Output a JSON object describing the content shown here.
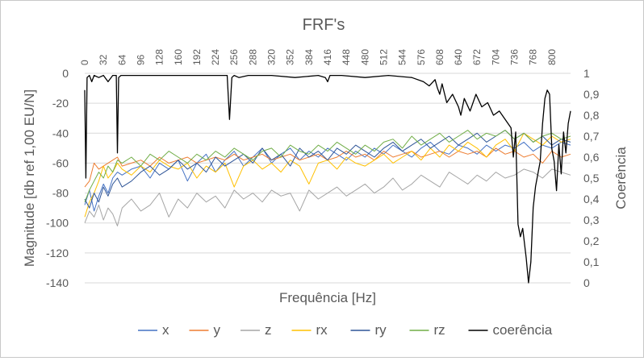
{
  "chart_data": {
    "type": "line",
    "title": "FRF's",
    "xlabel": "Frequência [Hz]",
    "ylabel": "Magnitude [db ref 1,00 EU/N]",
    "y2label": "Coerência",
    "xlim": [
      0,
      832
    ],
    "ylim": [
      -140,
      0
    ],
    "y2lim": [
      0,
      1
    ],
    "x_ticks": [
      "0",
      "32",
      "64",
      "96",
      "128",
      "160",
      "192",
      "224",
      "256",
      "288",
      "320",
      "352",
      "384",
      "416",
      "448",
      "480",
      "512",
      "544",
      "576",
      "608",
      "640",
      "672",
      "704",
      "736",
      "768",
      "800"
    ],
    "y_ticks": [
      "0",
      "-20",
      "-40",
      "-60",
      "-80",
      "-100",
      "-120",
      "-140"
    ],
    "y2_ticks": [
      "1",
      "0,9",
      "0,8",
      "0,7",
      "0,6",
      "0,5",
      "0,4",
      "0,3",
      "0,2",
      "0,1",
      "0"
    ],
    "grid": true,
    "legend_position": "bottom",
    "series": [
      {
        "name": "x",
        "color": "#4472c4",
        "axis": "left",
        "x": [
          0,
          8,
          16,
          24,
          32,
          40,
          48,
          56,
          64,
          80,
          96,
          112,
          128,
          144,
          160,
          176,
          192,
          208,
          224,
          240,
          256,
          272,
          288,
          304,
          320,
          336,
          352,
          368,
          384,
          400,
          416,
          432,
          448,
          464,
          480,
          496,
          512,
          528,
          544,
          560,
          576,
          592,
          608,
          624,
          640,
          656,
          672,
          688,
          704,
          720,
          736,
          752,
          768,
          784,
          800,
          816,
          832
        ],
        "values": [
          -88,
          -78,
          -92,
          -82,
          -74,
          -80,
          -70,
          -66,
          -68,
          -64,
          -62,
          -70,
          -60,
          -64,
          -58,
          -72,
          -60,
          -54,
          -66,
          -58,
          -52,
          -62,
          -56,
          -50,
          -60,
          -54,
          -50,
          -58,
          -52,
          -56,
          -50,
          -54,
          -58,
          -52,
          -56,
          -50,
          -54,
          -48,
          -52,
          -56,
          -50,
          -46,
          -52,
          -54,
          -48,
          -50,
          -54,
          -48,
          -52,
          -48,
          -50,
          -46,
          -52,
          -48,
          -50,
          -46,
          -48
        ]
      },
      {
        "name": "y",
        "color": "#ed7d31",
        "axis": "left",
        "x": [
          0,
          8,
          16,
          24,
          32,
          40,
          48,
          56,
          64,
          80,
          96,
          112,
          128,
          144,
          160,
          176,
          192,
          208,
          224,
          240,
          256,
          272,
          288,
          304,
          320,
          336,
          352,
          368,
          384,
          400,
          416,
          432,
          448,
          464,
          480,
          496,
          512,
          528,
          544,
          560,
          576,
          592,
          608,
          624,
          640,
          656,
          672,
          688,
          704,
          720,
          736,
          752,
          768,
          784,
          800,
          816,
          832
        ],
        "values": [
          -76,
          -72,
          -60,
          -64,
          -62,
          -60,
          -58,
          -56,
          -62,
          -60,
          -58,
          -62,
          -56,
          -60,
          -58,
          -56,
          -60,
          -58,
          -56,
          -58,
          -54,
          -58,
          -56,
          -54,
          -58,
          -56,
          -54,
          -58,
          -56,
          -54,
          -58,
          -56,
          -52,
          -56,
          -54,
          -58,
          -52,
          -56,
          -54,
          -52,
          -56,
          -54,
          -52,
          -56,
          -52,
          -54,
          -52,
          -56,
          -50,
          -54,
          -52,
          -56,
          -54,
          -60,
          -52,
          -56,
          -54
        ]
      },
      {
        "name": "z",
        "color": "#a5a5a5",
        "axis": "left",
        "x": [
          0,
          8,
          16,
          24,
          32,
          40,
          48,
          56,
          64,
          80,
          96,
          112,
          128,
          144,
          160,
          176,
          192,
          208,
          224,
          240,
          256,
          272,
          288,
          304,
          320,
          336,
          352,
          368,
          384,
          400,
          416,
          432,
          448,
          464,
          480,
          496,
          512,
          528,
          544,
          560,
          576,
          592,
          608,
          624,
          640,
          656,
          672,
          688,
          704,
          720,
          736,
          752,
          768,
          784,
          800,
          816,
          832
        ],
        "values": [
          -100,
          -92,
          -96,
          -88,
          -98,
          -90,
          -94,
          -102,
          -90,
          -84,
          -92,
          -88,
          -80,
          -96,
          -84,
          -90,
          -80,
          -86,
          -82,
          -90,
          -78,
          -84,
          -80,
          -86,
          -78,
          -82,
          -80,
          -92,
          -78,
          -84,
          -80,
          -76,
          -82,
          -78,
          -74,
          -80,
          -76,
          -70,
          -78,
          -74,
          -68,
          -72,
          -76,
          -66,
          -70,
          -74,
          -68,
          -72,
          -66,
          -70,
          -68,
          -64,
          -66,
          -70,
          -64,
          -66,
          -68
        ]
      },
      {
        "name": "rx",
        "color": "#ffc000",
        "axis": "left",
        "x": [
          0,
          8,
          16,
          24,
          32,
          40,
          48,
          56,
          64,
          80,
          96,
          112,
          128,
          144,
          160,
          176,
          192,
          208,
          224,
          240,
          256,
          272,
          288,
          304,
          320,
          336,
          352,
          368,
          384,
          400,
          416,
          432,
          448,
          464,
          480,
          496,
          512,
          528,
          544,
          560,
          576,
          592,
          608,
          624,
          640,
          656,
          672,
          688,
          704,
          720,
          736,
          752,
          768,
          784,
          800,
          816,
          832
        ],
        "values": [
          -96,
          -86,
          -80,
          -72,
          -62,
          -70,
          -66,
          -60,
          -64,
          -68,
          -62,
          -66,
          -58,
          -62,
          -64,
          -60,
          -70,
          -62,
          -66,
          -60,
          -76,
          -62,
          -58,
          -64,
          -60,
          -66,
          -58,
          -62,
          -74,
          -60,
          -58,
          -64,
          -56,
          -60,
          -62,
          -58,
          -54,
          -60,
          -56,
          -52,
          -58,
          -50,
          -56,
          -48,
          -52,
          -46,
          -50,
          -56,
          -48,
          -44,
          -52,
          -40,
          -44,
          -48,
          -42,
          -46,
          -44
        ]
      },
      {
        "name": "ry",
        "color": "#2f5597",
        "axis": "left",
        "x": [
          0,
          8,
          16,
          24,
          32,
          40,
          48,
          56,
          64,
          80,
          96,
          112,
          128,
          144,
          160,
          176,
          192,
          208,
          224,
          240,
          256,
          272,
          288,
          304,
          320,
          336,
          352,
          368,
          384,
          400,
          416,
          432,
          448,
          464,
          480,
          496,
          512,
          528,
          544,
          560,
          576,
          592,
          608,
          624,
          640,
          656,
          672,
          688,
          704,
          720,
          736,
          752,
          768,
          784,
          800,
          816,
          832
        ],
        "values": [
          -84,
          -90,
          -80,
          -86,
          -76,
          -82,
          -74,
          -70,
          -76,
          -72,
          -66,
          -62,
          -68,
          -64,
          -58,
          -64,
          -60,
          -66,
          -56,
          -62,
          -58,
          -54,
          -60,
          -50,
          -58,
          -54,
          -62,
          -50,
          -56,
          -52,
          -58,
          -50,
          -54,
          -48,
          -52,
          -56,
          -50,
          -46,
          -52,
          -48,
          -44,
          -50,
          -46,
          -42,
          -48,
          -44,
          -40,
          -46,
          -42,
          -38,
          -44,
          -40,
          -46,
          -42,
          -48,
          -44,
          -46
        ]
      },
      {
        "name": "rz",
        "color": "#70ad47",
        "axis": "left",
        "x": [
          0,
          8,
          16,
          24,
          32,
          40,
          48,
          56,
          64,
          80,
          96,
          112,
          128,
          144,
          160,
          176,
          192,
          208,
          224,
          240,
          256,
          272,
          288,
          304,
          320,
          336,
          352,
          368,
          384,
          400,
          416,
          432,
          448,
          464,
          480,
          496,
          512,
          528,
          544,
          560,
          576,
          592,
          608,
          624,
          640,
          656,
          672,
          688,
          704,
          720,
          736,
          752,
          768,
          784,
          800,
          816,
          832
        ],
        "values": [
          -86,
          -78,
          -72,
          -66,
          -70,
          -62,
          -66,
          -58,
          -60,
          -56,
          -62,
          -54,
          -58,
          -52,
          -56,
          -60,
          -54,
          -58,
          -52,
          -56,
          -50,
          -54,
          -58,
          -52,
          -50,
          -56,
          -48,
          -52,
          -54,
          -48,
          -52,
          -46,
          -50,
          -54,
          -48,
          -52,
          -46,
          -44,
          -50,
          -42,
          -48,
          -44,
          -40,
          -46,
          -42,
          -38,
          -44,
          -40,
          -42,
          -38,
          -44,
          -40,
          -46,
          -42,
          -40,
          -44,
          -42
        ]
      },
      {
        "name": "coerência",
        "color": "#000000",
        "axis": "right",
        "x": [
          0,
          2,
          4,
          8,
          12,
          16,
          24,
          32,
          40,
          48,
          54,
          56,
          58,
          62,
          64,
          72,
          96,
          128,
          160,
          208,
          232,
          244,
          248,
          252,
          256,
          264,
          280,
          320,
          360,
          400,
          412,
          416,
          420,
          440,
          480,
          520,
          560,
          580,
          590,
          600,
          604,
          608,
          612,
          620,
          630,
          640,
          644,
          650,
          660,
          670,
          680,
          690,
          700,
          710,
          720,
          730,
          734,
          738,
          742,
          746,
          750,
          756,
          760,
          764,
          768,
          772,
          776,
          780,
          784,
          788,
          792,
          796,
          800,
          804,
          808,
          812,
          816,
          820,
          824,
          828,
          832
        ],
        "values": [
          0.92,
          0.5,
          0.98,
          0.99,
          0.96,
          0.99,
          0.98,
          0.99,
          0.96,
          0.99,
          0.99,
          0.62,
          0.98,
          0.99,
          0.99,
          0.99,
          0.99,
          0.99,
          0.99,
          0.99,
          0.99,
          0.99,
          0.78,
          0.98,
          0.99,
          0.98,
          0.99,
          0.99,
          0.98,
          0.99,
          0.98,
          0.96,
          0.99,
          0.99,
          0.98,
          0.99,
          0.98,
          0.96,
          0.94,
          0.97,
          0.93,
          0.9,
          0.95,
          0.86,
          0.9,
          0.84,
          0.8,
          0.88,
          0.82,
          0.9,
          0.84,
          0.86,
          0.8,
          0.82,
          0.78,
          0.74,
          0.6,
          0.72,
          0.28,
          0.22,
          0.26,
          0.12,
          0.0,
          0.1,
          0.36,
          0.46,
          0.52,
          0.58,
          0.76,
          0.88,
          0.92,
          0.9,
          0.64,
          0.58,
          0.44,
          0.66,
          0.52,
          0.72,
          0.62,
          0.76,
          0.82
        ]
      }
    ]
  }
}
